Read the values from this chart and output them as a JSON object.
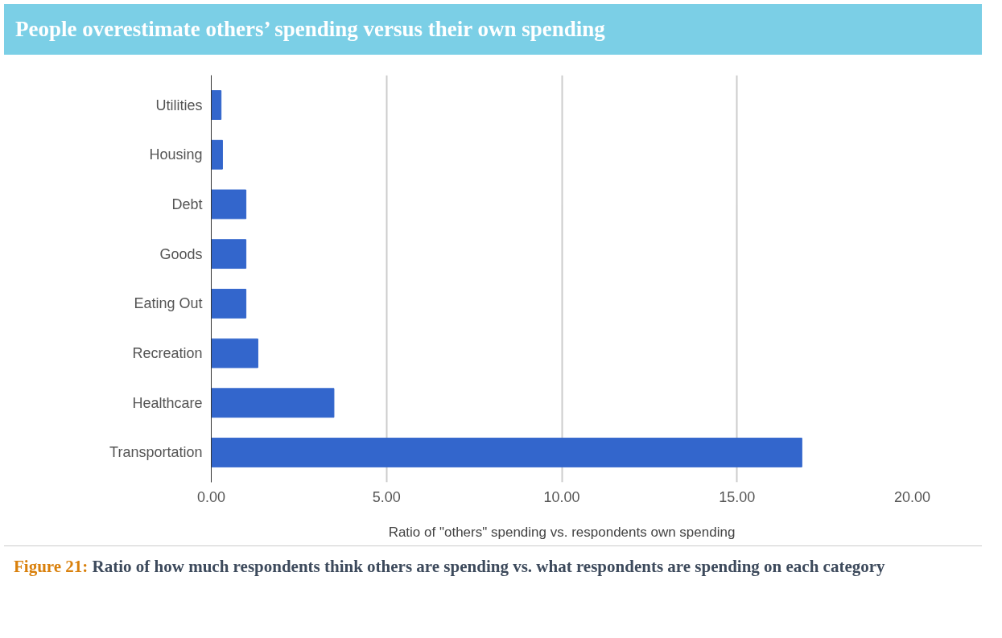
{
  "chart_data": {
    "type": "bar",
    "orientation": "horizontal",
    "title": "People overestimate others’ spending versus their own spending",
    "categories": [
      "Utilities",
      "Housing",
      "Debt",
      "Goods",
      "Eating Out",
      "Recreation",
      "Healthcare",
      "Transportation"
    ],
    "values": [
      0.28,
      0.32,
      0.99,
      0.99,
      0.99,
      1.33,
      3.5,
      16.85
    ],
    "color": "#3366cc",
    "xlim": [
      0,
      20
    ],
    "xticks": [
      {
        "value": 0,
        "label": "0.00"
      },
      {
        "value": 5,
        "label": "5.00"
      },
      {
        "value": 10,
        "label": "10.00"
      },
      {
        "value": 15,
        "label": "15.00"
      },
      {
        "value": 20,
        "label": "20.00"
      }
    ],
    "xlabel": "Ratio of \"others\" spending vs. respondents own spending",
    "grid": "x",
    "annotations": [
      "Figure 21:",
      "Ratio of how much respondents think others are spending vs. what respondents are spending on each category"
    ]
  }
}
